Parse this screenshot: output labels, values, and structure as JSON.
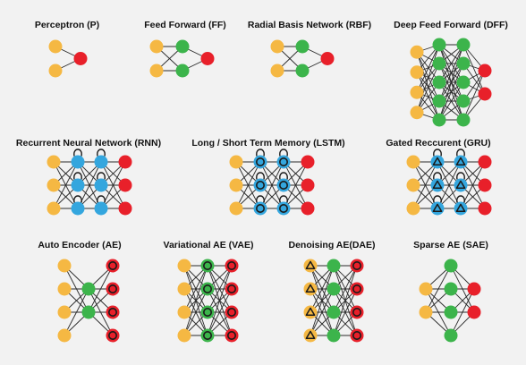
{
  "colors": {
    "input": "#f5b843",
    "hidden": "#3cb44b",
    "output": "#e8202a",
    "recurrent": "#34a6de",
    "edge": "#2a2a2a",
    "background": "#f2f2f2"
  },
  "networks": [
    {
      "id": "perceptron",
      "title": "Perceptron (P)"
    },
    {
      "id": "feed-forward",
      "title": "Feed Forward (FF)"
    },
    {
      "id": "radial-basis-network",
      "title": "Radial Basis Network (RBF)"
    },
    {
      "id": "deep-feed-forward",
      "title": "Deep Feed Forward (DFF)"
    },
    {
      "id": "recurrent-neural-network",
      "title": "Recurrent Neural Network (RNN)"
    },
    {
      "id": "long-short-term-memory",
      "title": "Long / Short Term Memory (LSTM)"
    },
    {
      "id": "gated-recurrent",
      "title": "Gated Reccurent (GRU)"
    },
    {
      "id": "auto-encoder",
      "title": "Auto Encoder (AE)"
    },
    {
      "id": "variational-ae",
      "title": "Variational AE (VAE)"
    },
    {
      "id": "denoising-ae",
      "title": "Denoising AE(DAE)"
    },
    {
      "id": "sparse-ae",
      "title": "Sparse AE (SAE)"
    }
  ]
}
